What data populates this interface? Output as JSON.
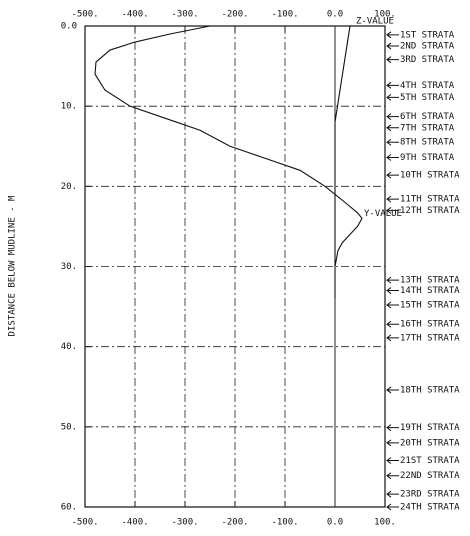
{
  "chart_data": {
    "type": "line",
    "ylabel": "DISTANCE BELOW MUDLINE - M",
    "xlim": [
      -500,
      100
    ],
    "ylim": [
      0,
      60
    ],
    "xticks": [
      {
        "value": -500,
        "label": "-500."
      },
      {
        "value": -400,
        "label": "-400."
      },
      {
        "value": -300,
        "label": "-300."
      },
      {
        "value": -200,
        "label": "-200."
      },
      {
        "value": -100,
        "label": "-100."
      },
      {
        "value": 0,
        "label": "0.0"
      },
      {
        "value": 100,
        "label": "100."
      }
    ],
    "yticks": [
      {
        "value": 0,
        "label": "0.0"
      },
      {
        "value": 10,
        "label": "10."
      },
      {
        "value": 20,
        "label": "20."
      },
      {
        "value": 30,
        "label": "30."
      },
      {
        "value": 40,
        "label": "40."
      },
      {
        "value": 50,
        "label": "50."
      },
      {
        "value": 60,
        "label": "60."
      }
    ],
    "grid": true,
    "series": [
      {
        "color": "#111111",
        "x": [
          -250,
          -330,
          -400,
          -450,
          -478,
          -480,
          -460,
          -410,
          -340,
          -270,
          -210,
          -140,
          -70,
          -20,
          20,
          45,
          54,
          45,
          30,
          15,
          6,
          0
        ],
        "y": [
          0,
          1,
          2,
          3,
          4.5,
          6,
          8,
          10,
          11.5,
          13,
          15,
          16.5,
          18,
          20,
          22,
          23.3,
          24,
          25,
          26,
          27,
          28,
          30
        ]
      },
      {
        "color": "#111111",
        "x": [
          30,
          0,
          0,
          0,
          0
        ],
        "y": [
          0,
          12,
          23,
          30,
          34
        ]
      }
    ],
    "annotations": [
      {
        "text": "Z-VALUE",
        "x": 42,
        "y": -0.6
      },
      {
        "text": "Y-VALUE",
        "x": 58,
        "y": 23.4
      }
    ],
    "strata": [
      {
        "label": "1ST STRATA",
        "depth": 1.1
      },
      {
        "label": "2ND STRATA",
        "depth": 2.5
      },
      {
        "label": "3RD STRATA",
        "depth": 4.2
      },
      {
        "label": "4TH STRATA",
        "depth": 7.4
      },
      {
        "label": "5TH STRATA",
        "depth": 8.9
      },
      {
        "label": "6TH STRATA",
        "depth": 11.3
      },
      {
        "label": "7TH STRATA",
        "depth": 12.7
      },
      {
        "label": "8TH STRATA",
        "depth": 14.5
      },
      {
        "label": "9TH STRATA",
        "depth": 16.4
      },
      {
        "label": "10TH STRATA",
        "depth": 18.6
      },
      {
        "label": "11TH STRATA",
        "depth": 21.6
      },
      {
        "label": "12TH STRATA",
        "depth": 23
      },
      {
        "label": "13TH STRATA",
        "depth": 31.7
      },
      {
        "label": "14TH STRATA",
        "depth": 33
      },
      {
        "label": "15TH STRATA",
        "depth": 34.8
      },
      {
        "label": "16TH STRATA",
        "depth": 37.2
      },
      {
        "label": "17TH STRATA",
        "depth": 38.9
      },
      {
        "label": "18TH STRATA",
        "depth": 45.4
      },
      {
        "label": "19TH STRATA",
        "depth": 50.1
      },
      {
        "label": "20TH STRATA",
        "depth": 52
      },
      {
        "label": "21ST STRATA",
        "depth": 54.2
      },
      {
        "label": "22ND STRATA",
        "depth": 56.1
      },
      {
        "label": "23RD STRATA",
        "depth": 58.4
      },
      {
        "label": "24TH STRATA",
        "depth": 60
      }
    ]
  }
}
